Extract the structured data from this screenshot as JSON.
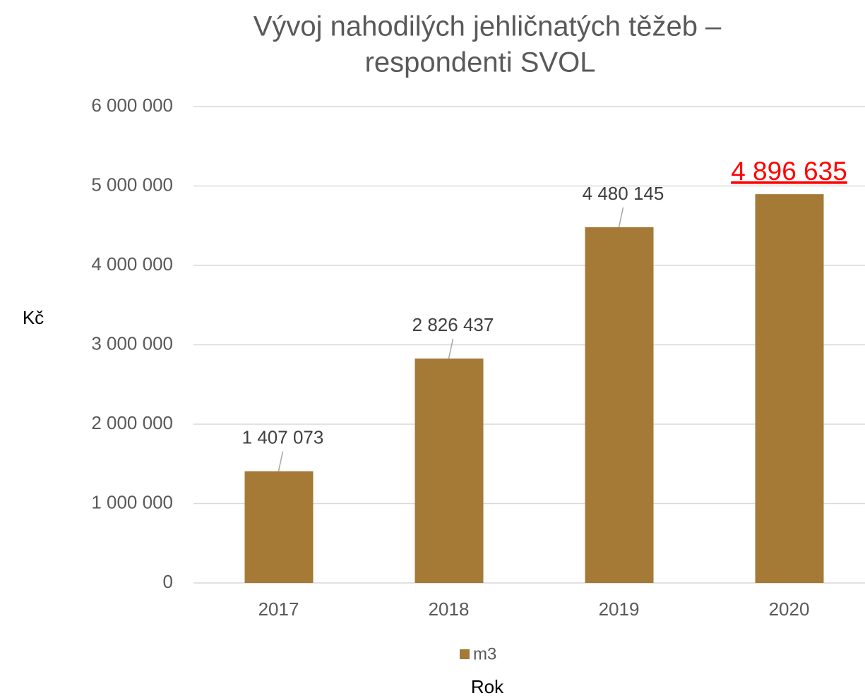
{
  "chart_data": {
    "type": "bar",
    "title": [
      "Vývoj nahodilých jehličnatých těžeb –",
      "respondenti SVOL"
    ],
    "y_label": "Kč",
    "x_label": "Rok",
    "categories": [
      "2017",
      "2018",
      "2019",
      "2020"
    ],
    "series": [
      {
        "name": "m3",
        "color": "#a57936",
        "values": [
          1407073,
          2826437,
          4480145,
          4896635
        ],
        "value_labels": [
          "1 407 073",
          "2 826 437",
          "4 480 145",
          "4 896 635"
        ],
        "value_label_colors": [
          "#404040",
          "#404040",
          "#404040",
          "#ff0000"
        ]
      }
    ],
    "ylim": [
      0,
      6000000
    ],
    "yticks": [
      {
        "value": 0,
        "label": "0"
      },
      {
        "value": 1000000,
        "label": "1 000 000"
      },
      {
        "value": 2000000,
        "label": "2 000 000"
      },
      {
        "value": 3000000,
        "label": "3 000 000"
      },
      {
        "value": 4000000,
        "label": "4 000 000"
      },
      {
        "value": 5000000,
        "label": "5 000 000"
      },
      {
        "value": 6000000,
        "label": "6 000 000"
      }
    ],
    "grid": true,
    "legend": "bottom"
  }
}
